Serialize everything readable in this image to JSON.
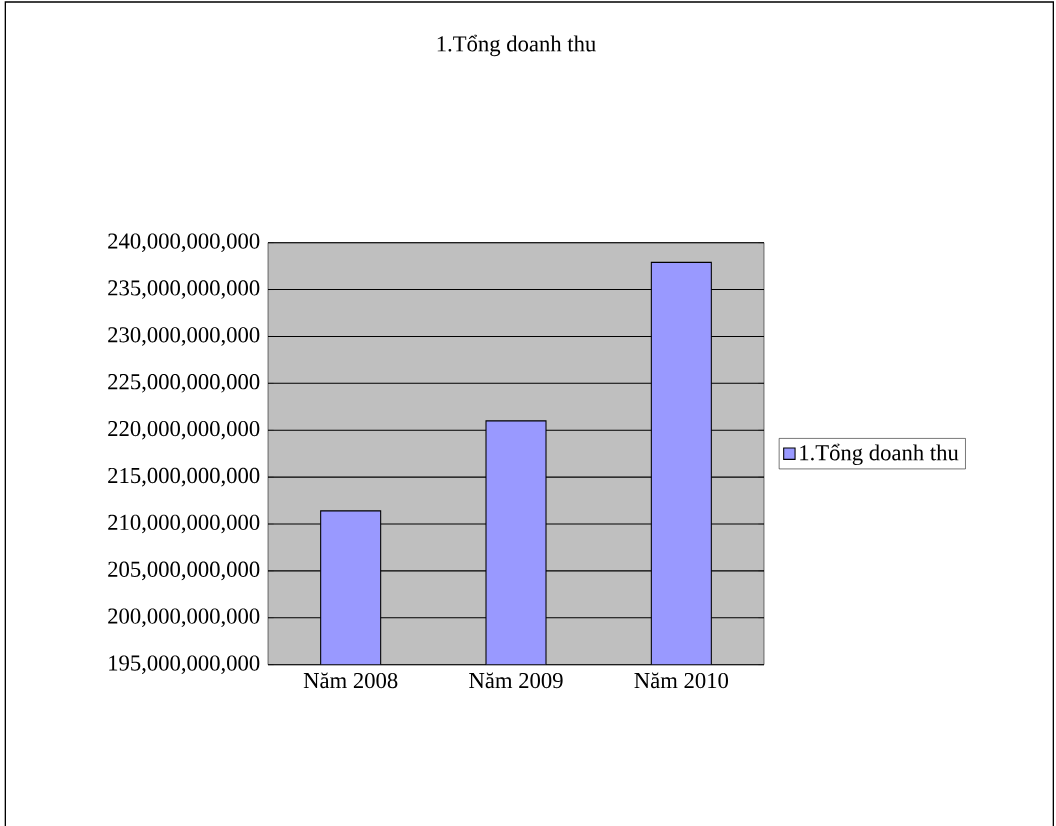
{
  "chart_data": {
    "type": "bar",
    "title": "1.Tổng doanh thu",
    "categories": [
      "Năm 2008",
      "Năm 2009",
      "Năm 2010"
    ],
    "series": [
      {
        "name": "1.Tổng doanh thu",
        "color": "#9999ff",
        "values": [
          211400000000,
          221000000000,
          237900000000
        ]
      }
    ],
    "ylim": [
      195000000000,
      240000000000
    ],
    "yticks": [
      {
        "value": 195000000000,
        "label": "195,000,000,000"
      },
      {
        "value": 200000000000,
        "label": "200,000,000,000"
      },
      {
        "value": 205000000000,
        "label": "205,000,000,000"
      },
      {
        "value": 210000000000,
        "label": "210,000,000,000"
      },
      {
        "value": 215000000000,
        "label": "215,000,000,000"
      },
      {
        "value": 220000000000,
        "label": "220,000,000,000"
      },
      {
        "value": 225000000000,
        "label": "225,000,000,000"
      },
      {
        "value": 230000000000,
        "label": "230,000,000,000"
      },
      {
        "value": 235000000000,
        "label": "235,000,000,000"
      },
      {
        "value": 240000000000,
        "label": "240,000,000,000"
      }
    ],
    "grid": "y",
    "legend": "right"
  }
}
